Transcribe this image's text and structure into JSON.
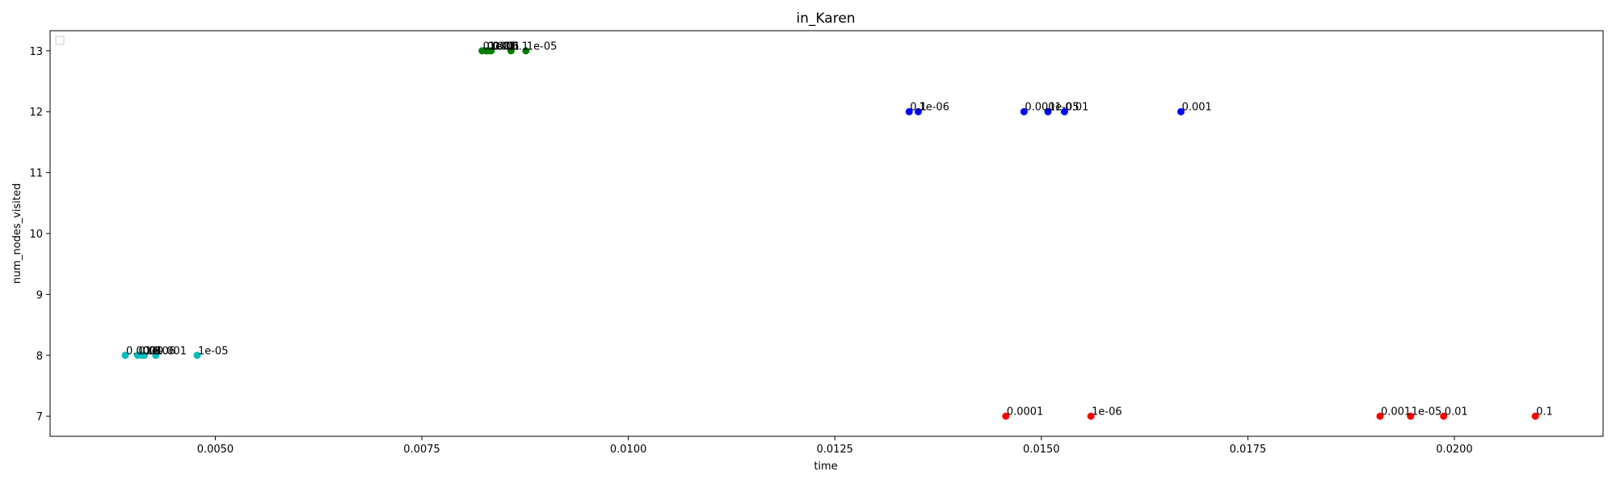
{
  "chart_data": {
    "type": "scatter",
    "title": "in_Karen",
    "xlabel": "time",
    "ylabel": "num_nodes_visited",
    "xlim": [
      0.003,
      0.0218
    ],
    "ylim": [
      6.67,
      13.33
    ],
    "x_ticks": [
      {
        "value": 0.005,
        "label": "0.0050"
      },
      {
        "value": 0.0075,
        "label": "0.0075"
      },
      {
        "value": 0.01,
        "label": "0.0100"
      },
      {
        "value": 0.0125,
        "label": "0.0125"
      },
      {
        "value": 0.015,
        "label": "0.0150"
      },
      {
        "value": 0.0175,
        "label": "0.0175"
      },
      {
        "value": 0.02,
        "label": "0.0200"
      }
    ],
    "y_ticks": [
      {
        "value": 7,
        "label": "7"
      },
      {
        "value": 8,
        "label": "8"
      },
      {
        "value": 9,
        "label": "9"
      },
      {
        "value": 10,
        "label": "10"
      },
      {
        "value": 11,
        "label": "11"
      },
      {
        "value": 12,
        "label": "12"
      },
      {
        "value": 13,
        "label": "13"
      }
    ],
    "grid": false,
    "legend": {
      "placement": "top-left",
      "entries": []
    },
    "series": [
      {
        "color": "#008000",
        "points": [
          {
            "x": 0.00823,
            "y": 13,
            "label": "0.0001"
          },
          {
            "x": 0.00828,
            "y": 13,
            "label": "0.001"
          },
          {
            "x": 0.00834,
            "y": 13,
            "label": "0.01"
          },
          {
            "x": 0.00858,
            "y": 13,
            "label": "0.1"
          },
          {
            "x": 0.00876,
            "y": 13,
            "label": "1e-05"
          },
          {
            "x": 0.0083,
            "y": 13,
            "label": "1e-06"
          }
        ]
      },
      {
        "color": "#0000ff",
        "points": [
          {
            "x": 0.0134,
            "y": 12,
            "label": "0.1"
          },
          {
            "x": 0.01351,
            "y": 12,
            "label": "1e-06"
          },
          {
            "x": 0.01479,
            "y": 12,
            "label": "0.0001"
          },
          {
            "x": 0.01508,
            "y": 12,
            "label": "1e-05"
          },
          {
            "x": 0.01528,
            "y": 12,
            "label": "0.01"
          },
          {
            "x": 0.01669,
            "y": 12,
            "label": "0.001"
          }
        ]
      },
      {
        "color": "#00bfbf",
        "points": [
          {
            "x": 0.00391,
            "y": 8,
            "label": "0.0001"
          },
          {
            "x": 0.00406,
            "y": 8,
            "label": "0.01"
          },
          {
            "x": 0.00411,
            "y": 8,
            "label": "0.1"
          },
          {
            "x": 0.00414,
            "y": 8,
            "label": "1e-06"
          },
          {
            "x": 0.00428,
            "y": 8,
            "label": "0.001"
          },
          {
            "x": 0.00478,
            "y": 8,
            "label": "1e-05"
          }
        ]
      },
      {
        "color": "#ff0000",
        "points": [
          {
            "x": 0.01457,
            "y": 7,
            "label": "0.0001"
          },
          {
            "x": 0.0156,
            "y": 7,
            "label": "1e-06"
          },
          {
            "x": 0.0191,
            "y": 7,
            "label": "0.001"
          },
          {
            "x": 0.01947,
            "y": 7,
            "label": "1e-05"
          },
          {
            "x": 0.01987,
            "y": 7,
            "label": "0.01"
          },
          {
            "x": 0.02098,
            "y": 7,
            "label": "0.1"
          }
        ]
      }
    ]
  }
}
